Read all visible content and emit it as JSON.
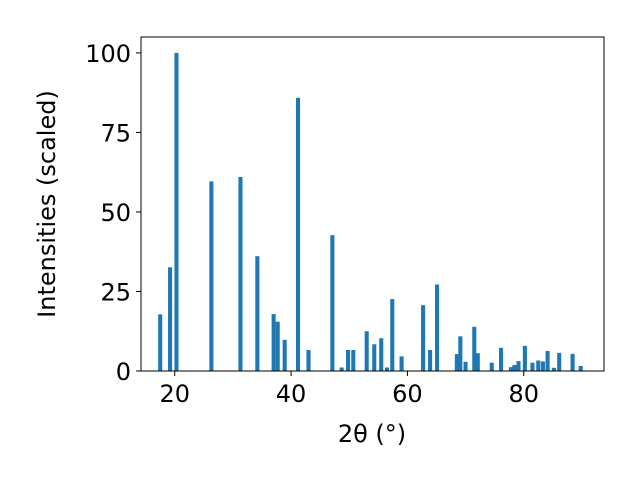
{
  "chart_data": {
    "type": "bar",
    "xlabel": "2θ (°)",
    "ylabel": "Intensities (scaled)",
    "xlim": [
      14.2,
      93.8
    ],
    "ylim": [
      0,
      105
    ],
    "xticks": [
      20,
      40,
      60,
      80
    ],
    "yticks": [
      0,
      25,
      50,
      75,
      100
    ],
    "grid": false,
    "bar_color": "#1f77b4",
    "bar_width": 0.7,
    "x": [
      17.5,
      19.2,
      20.3,
      26.3,
      31.3,
      34.2,
      37.0,
      37.7,
      38.9,
      41.2,
      43.0,
      47.1,
      48.7,
      49.8,
      50.7,
      53.0,
      54.3,
      55.5,
      56.5,
      57.4,
      59.0,
      62.7,
      63.9,
      65.1,
      68.5,
      69.1,
      70.0,
      71.5,
      72.1,
      74.5,
      76.1,
      77.8,
      78.4,
      79.1,
      80.2,
      81.5,
      82.5,
      83.3,
      84.1,
      85.2,
      86.1,
      88.4,
      89.8
    ],
    "values": [
      17.8,
      32.6,
      100,
      59.6,
      61.0,
      36.1,
      17.9,
      15.5,
      9.8,
      85.9,
      6.6,
      42.7,
      1.1,
      6.6,
      6.6,
      12.5,
      8.4,
      10.3,
      1.1,
      22.6,
      4.6,
      20.7,
      6.6,
      27.2,
      5.3,
      10.9,
      2.9,
      13.9,
      5.6,
      2.6,
      7.3,
      1.2,
      1.9,
      3.1,
      7.9,
      2.6,
      3.3,
      3.0,
      6.3,
      1.0,
      5.7,
      5.4,
      1.6
    ]
  }
}
